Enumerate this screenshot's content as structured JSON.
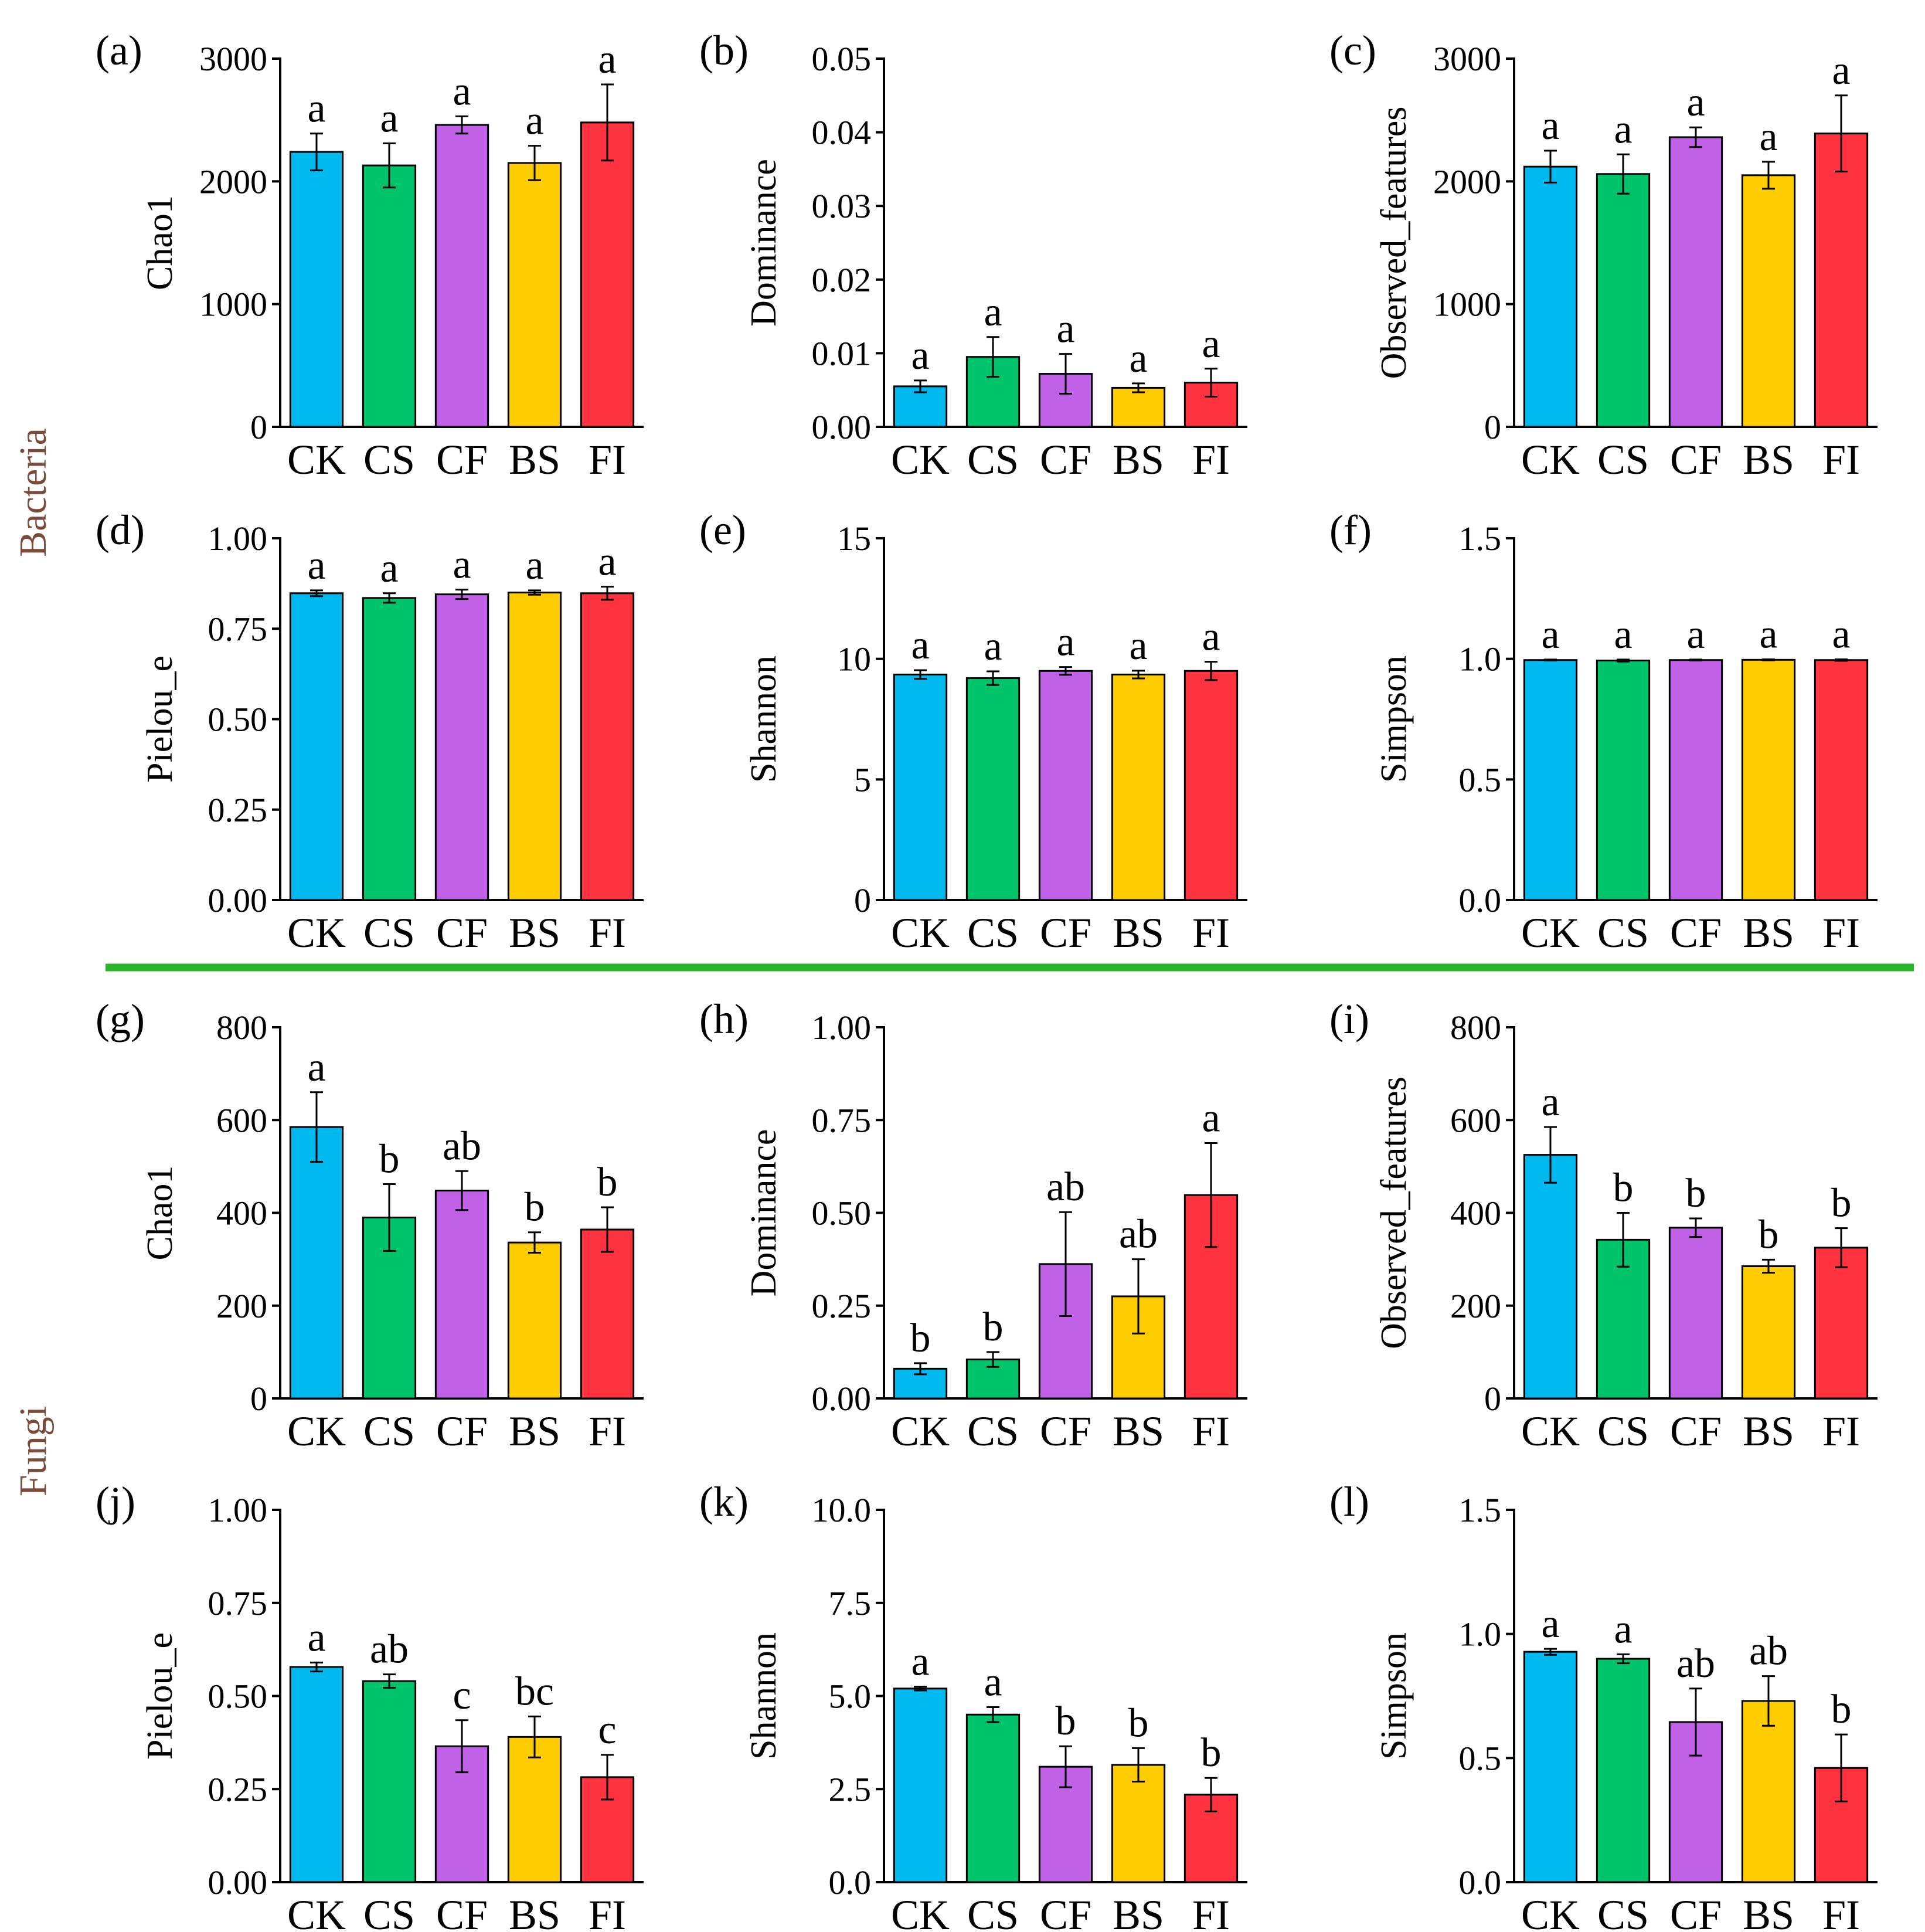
{
  "colors": {
    "bar_colors": [
      "#00b9ef",
      "#00c46a",
      "#c161e8",
      "#ffcc00",
      "#ff3340"
    ],
    "separator": "#2ab52a",
    "group_label": "#7a4a3a"
  },
  "groups": {
    "bacteria": "Bacteria",
    "fungi": "Fungi"
  },
  "chart_data": [
    {
      "panel": "(a)",
      "type": "bar",
      "ylabel": "Chao1",
      "categories": [
        "CK",
        "CS",
        "CF",
        "BS",
        "FI"
      ],
      "values": [
        2240,
        2130,
        2460,
        2150,
        2480
      ],
      "errors": [
        150,
        180,
        70,
        140,
        310
      ],
      "significance": [
        "a",
        "a",
        "a",
        "a",
        "a"
      ],
      "ylim": [
        0,
        3000
      ],
      "ticks": [
        0,
        1000,
        2000,
        3000
      ],
      "tick_labels": [
        "0",
        "1000",
        "2000",
        "3000"
      ]
    },
    {
      "panel": "(b)",
      "type": "bar",
      "ylabel": "Dominance",
      "categories": [
        "CK",
        "CS",
        "CF",
        "BS",
        "FI"
      ],
      "values": [
        0.0055,
        0.0095,
        0.0072,
        0.0053,
        0.006
      ],
      "errors": [
        0.0008,
        0.0027,
        0.0027,
        0.0006,
        0.0019
      ],
      "significance": [
        "a",
        "a",
        "a",
        "a",
        "a"
      ],
      "ylim": [
        0,
        0.05
      ],
      "ticks": [
        0,
        0.01,
        0.02,
        0.03,
        0.04,
        0.05
      ],
      "tick_labels": [
        "0.00",
        "0.01",
        "0.02",
        "0.03",
        "0.04",
        "0.05"
      ]
    },
    {
      "panel": "(c)",
      "type": "bar",
      "ylabel": "Observed_features",
      "categories": [
        "CK",
        "CS",
        "CF",
        "BS",
        "FI"
      ],
      "values": [
        2120,
        2060,
        2360,
        2050,
        2390
      ],
      "errors": [
        130,
        160,
        80,
        110,
        310
      ],
      "significance": [
        "a",
        "a",
        "a",
        "a",
        "a"
      ],
      "ylim": [
        0,
        3000
      ],
      "ticks": [
        0,
        1000,
        2000,
        3000
      ],
      "tick_labels": [
        "0",
        "1000",
        "2000",
        "3000"
      ]
    },
    {
      "panel": "(d)",
      "type": "bar",
      "ylabel": "Pielou_e",
      "categories": [
        "CK",
        "CS",
        "CF",
        "BS",
        "FI"
      ],
      "values": [
        0.848,
        0.835,
        0.845,
        0.85,
        0.848
      ],
      "errors": [
        0.008,
        0.013,
        0.013,
        0.006,
        0.018
      ],
      "significance": [
        "a",
        "a",
        "a",
        "a",
        "a"
      ],
      "ylim": [
        0,
        1.0
      ],
      "ticks": [
        0,
        0.25,
        0.5,
        0.75,
        1.0
      ],
      "tick_labels": [
        "0.00",
        "0.25",
        "0.50",
        "0.75",
        "1.00"
      ]
    },
    {
      "panel": "(e)",
      "type": "bar",
      "ylabel": "Shannon",
      "categories": [
        "CK",
        "CS",
        "CF",
        "BS",
        "FI"
      ],
      "values": [
        9.35,
        9.2,
        9.5,
        9.35,
        9.5
      ],
      "errors": [
        0.18,
        0.28,
        0.16,
        0.16,
        0.38
      ],
      "significance": [
        "a",
        "a",
        "a",
        "a",
        "a"
      ],
      "ylim": [
        0,
        15
      ],
      "ticks": [
        0,
        5,
        10,
        15
      ],
      "tick_labels": [
        "0",
        "5",
        "10",
        "15"
      ]
    },
    {
      "panel": "(f)",
      "type": "bar",
      "ylabel": "Simpson",
      "categories": [
        "CK",
        "CS",
        "CF",
        "BS",
        "FI"
      ],
      "values": [
        0.995,
        0.993,
        0.995,
        0.996,
        0.995
      ],
      "errors": [
        0.002,
        0.004,
        0.002,
        0.002,
        0.003
      ],
      "significance": [
        "a",
        "a",
        "a",
        "a",
        "a"
      ],
      "ylim": [
        0,
        1.5
      ],
      "ticks": [
        0,
        0.5,
        1.0,
        1.5
      ],
      "tick_labels": [
        "0.0",
        "0.5",
        "1.0",
        "1.5"
      ]
    },
    {
      "panel": "(g)",
      "type": "bar",
      "ylabel": "Chao1",
      "categories": [
        "CK",
        "CS",
        "CF",
        "BS",
        "FI"
      ],
      "values": [
        585,
        390,
        448,
        336,
        364
      ],
      "errors": [
        75,
        72,
        42,
        22,
        48
      ],
      "significance": [
        "a",
        "b",
        "ab",
        "b",
        "b"
      ],
      "ylim": [
        0,
        800
      ],
      "ticks": [
        0,
        200,
        400,
        600,
        800
      ],
      "tick_labels": [
        "0",
        "200",
        "400",
        "600",
        "800"
      ]
    },
    {
      "panel": "(h)",
      "type": "bar",
      "ylabel": "Dominance",
      "categories": [
        "CK",
        "CS",
        "CF",
        "BS",
        "FI"
      ],
      "values": [
        0.08,
        0.105,
        0.362,
        0.275,
        0.548
      ],
      "errors": [
        0.015,
        0.02,
        0.14,
        0.1,
        0.14
      ],
      "significance": [
        "b",
        "b",
        "ab",
        "ab",
        "a"
      ],
      "ylim": [
        0,
        1.0
      ],
      "ticks": [
        0,
        0.25,
        0.5,
        0.75,
        1.0
      ],
      "tick_labels": [
        "0.00",
        "0.25",
        "0.50",
        "0.75",
        "1.00"
      ]
    },
    {
      "panel": "(i)",
      "type": "bar",
      "ylabel": "Observed_features",
      "categories": [
        "CK",
        "CS",
        "CF",
        "BS",
        "FI"
      ],
      "values": [
        525,
        342,
        368,
        285,
        325
      ],
      "errors": [
        60,
        58,
        20,
        14,
        42
      ],
      "significance": [
        "a",
        "b",
        "b",
        "b",
        "b"
      ],
      "ylim": [
        0,
        800
      ],
      "ticks": [
        0,
        200,
        400,
        600,
        800
      ],
      "tick_labels": [
        "0",
        "200",
        "400",
        "600",
        "800"
      ]
    },
    {
      "panel": "(j)",
      "type": "bar",
      "ylabel": "Pielou_e",
      "categories": [
        "CK",
        "CS",
        "CF",
        "BS",
        "FI"
      ],
      "values": [
        0.578,
        0.54,
        0.365,
        0.39,
        0.282
      ],
      "errors": [
        0.012,
        0.018,
        0.07,
        0.055,
        0.06
      ],
      "significance": [
        "a",
        "ab",
        "c",
        "bc",
        "c"
      ],
      "ylim": [
        0,
        1.0
      ],
      "ticks": [
        0,
        0.25,
        0.5,
        0.75,
        1.0
      ],
      "tick_labels": [
        "0.00",
        "0.25",
        "0.50",
        "0.75",
        "1.00"
      ]
    },
    {
      "panel": "(k)",
      "type": "bar",
      "ylabel": "Shannon",
      "categories": [
        "CK",
        "CS",
        "CF",
        "BS",
        "FI"
      ],
      "values": [
        5.2,
        4.5,
        3.1,
        3.15,
        2.35
      ],
      "errors": [
        0.05,
        0.2,
        0.55,
        0.45,
        0.45
      ],
      "significance": [
        "a",
        "a",
        "b",
        "b",
        "b"
      ],
      "ylim": [
        0,
        10
      ],
      "ticks": [
        0,
        2.5,
        5,
        7.5,
        10
      ],
      "tick_labels": [
        "0.0",
        "2.5",
        "5.0",
        "7.5",
        "10.0"
      ]
    },
    {
      "panel": "(l)",
      "type": "bar",
      "ylabel": "Simpson",
      "categories": [
        "CK",
        "CS",
        "CF",
        "BS",
        "FI"
      ],
      "values": [
        0.928,
        0.9,
        0.645,
        0.73,
        0.46
      ],
      "errors": [
        0.012,
        0.018,
        0.135,
        0.1,
        0.135
      ],
      "significance": [
        "a",
        "a",
        "ab",
        "ab",
        "b"
      ],
      "ylim": [
        0,
        1.5
      ],
      "ticks": [
        0,
        0.5,
        1.0,
        1.5
      ],
      "tick_labels": [
        "0.0",
        "0.5",
        "1.0",
        "1.5"
      ]
    }
  ]
}
